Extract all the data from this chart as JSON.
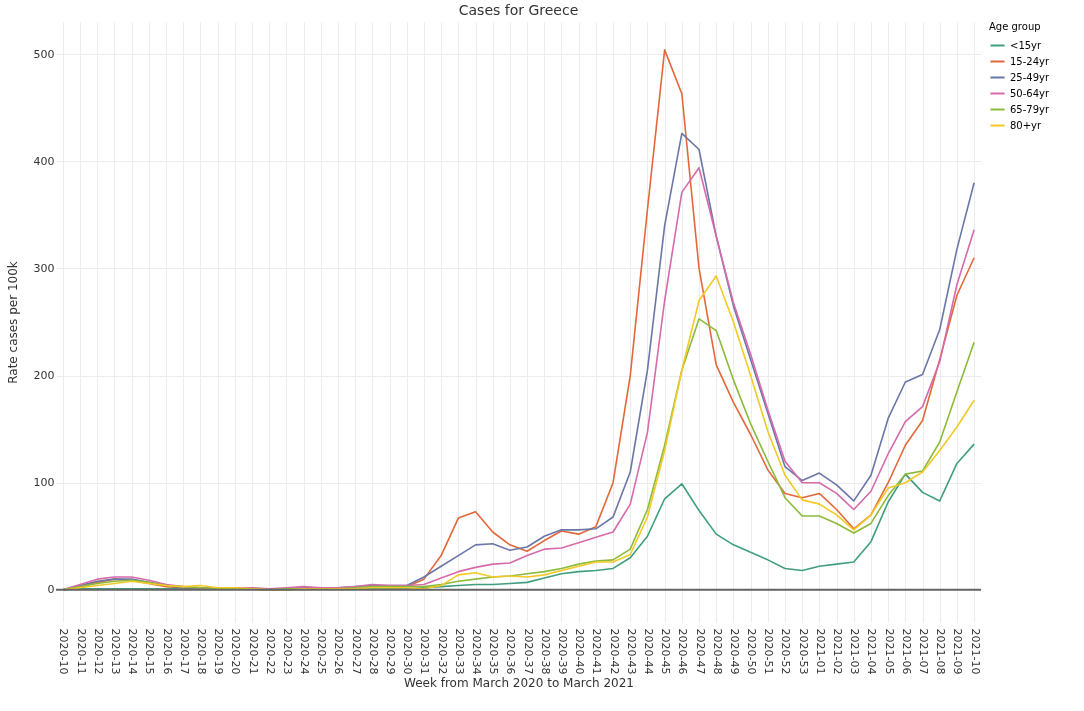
{
  "chart_data": {
    "type": "line",
    "title": "Cases for Greece",
    "xlabel": "Week from March 2020 to March 2021",
    "ylabel": "Rate cases per 100k",
    "legend_title": "Age group",
    "categories": [
      "2020-10",
      "2020-11",
      "2020-12",
      "2020-13",
      "2020-14",
      "2020-15",
      "2020-16",
      "2020-17",
      "2020-18",
      "2020-19",
      "2020-20",
      "2020-21",
      "2020-22",
      "2020-23",
      "2020-24",
      "2020-25",
      "2020-26",
      "2020-27",
      "2020-28",
      "2020-29",
      "2020-30",
      "2020-31",
      "2020-32",
      "2020-33",
      "2020-34",
      "2020-35",
      "2020-36",
      "2020-37",
      "2020-38",
      "2020-39",
      "2020-40",
      "2020-41",
      "2020-42",
      "2020-43",
      "2020-44",
      "2020-45",
      "2020-46",
      "2020-47",
      "2020-48",
      "2020-49",
      "2020-50",
      "2020-51",
      "2020-52",
      "2020-53",
      "2021-01",
      "2021-02",
      "2021-03",
      "2021-04",
      "2021-05",
      "2021-06",
      "2021-07",
      "2021-08",
      "2021-09",
      "2021-10"
    ],
    "series": [
      {
        "name": "<15yr",
        "color": "#3f9e80",
        "values": [
          0,
          1,
          1,
          1,
          1,
          1,
          1,
          1,
          1,
          1,
          1,
          1,
          0,
          0,
          1,
          1,
          1,
          1,
          1,
          1,
          1,
          2,
          3,
          4,
          5,
          5,
          6,
          7,
          11,
          15,
          17,
          18,
          20,
          30,
          50,
          85,
          99,
          74,
          52,
          42,
          35,
          28,
          20,
          18,
          22,
          24,
          26,
          45,
          82,
          108,
          91,
          83,
          118,
          136
        ]
      },
      {
        "name": "15-24yr",
        "color": "#e2683a",
        "values": [
          0,
          3,
          7,
          10,
          9,
          6,
          3,
          2,
          2,
          1,
          1,
          1,
          0,
          1,
          1,
          1,
          1,
          2,
          3,
          3,
          3,
          10,
          32,
          67,
          73,
          54,
          42,
          36,
          46,
          55,
          52,
          59,
          100,
          200,
          355,
          504,
          463,
          300,
          210,
          175,
          145,
          112,
          90,
          86,
          90,
          75,
          57,
          70,
          100,
          135,
          158,
          215,
          275,
          310
        ]
      },
      {
        "name": "25-49yr",
        "color": "#6a76a8",
        "values": [
          0,
          4,
          8,
          10,
          10,
          7,
          4,
          2,
          2,
          1,
          1,
          1,
          0,
          1,
          2,
          2,
          2,
          3,
          4,
          4,
          4,
          12,
          22,
          32,
          42,
          43,
          37,
          40,
          50,
          56,
          56,
          57,
          68,
          110,
          205,
          340,
          426,
          411,
          330,
          265,
          215,
          165,
          115,
          102,
          109,
          98,
          83,
          107,
          160,
          194,
          201,
          243,
          318,
          380
        ]
      },
      {
        "name": "50-64yr",
        "color": "#d66aaa",
        "values": [
          0,
          5,
          10,
          12,
          12,
          9,
          5,
          3,
          2,
          1,
          2,
          2,
          1,
          2,
          3,
          2,
          2,
          3,
          5,
          4,
          4,
          5,
          11,
          17,
          21,
          24,
          25,
          32,
          38,
          39,
          44,
          49,
          54,
          80,
          147,
          270,
          371,
          394,
          330,
          268,
          220,
          168,
          120,
          100,
          100,
          90,
          75,
          92,
          127,
          157,
          171,
          213,
          285,
          336
        ]
      },
      {
        "name": "65-79yr",
        "color": "#8cba3c",
        "values": [
          0,
          3,
          6,
          8,
          9,
          7,
          4,
          3,
          2,
          1,
          1,
          1,
          0,
          1,
          1,
          1,
          1,
          2,
          3,
          3,
          3,
          3,
          5,
          8,
          10,
          12,
          13,
          15,
          17,
          20,
          24,
          27,
          28,
          38,
          75,
          135,
          205,
          253,
          242,
          196,
          155,
          120,
          86,
          69,
          69,
          62,
          53,
          62,
          88,
          108,
          111,
          138,
          185,
          231
        ]
      },
      {
        "name": "80+yr",
        "color": "#f2c925",
        "values": [
          0,
          2,
          4,
          6,
          8,
          6,
          4,
          3,
          4,
          2,
          2,
          1,
          0,
          0,
          1,
          1,
          1,
          1,
          2,
          2,
          2,
          1,
          4,
          14,
          16,
          12,
          13,
          12,
          14,
          18,
          22,
          26,
          26,
          33,
          68,
          130,
          205,
          270,
          293,
          250,
          200,
          148,
          107,
          84,
          80,
          70,
          56,
          70,
          95,
          100,
          110,
          130,
          152,
          177
        ]
      }
    ],
    "ylim": [
      -30,
      530
    ],
    "yticks": [
      0,
      100,
      200,
      300,
      400,
      500
    ],
    "grid": true,
    "legend": "top right",
    "ref_lines": [
      {
        "axis": "y",
        "value": 0,
        "color": "#666666"
      }
    ]
  }
}
